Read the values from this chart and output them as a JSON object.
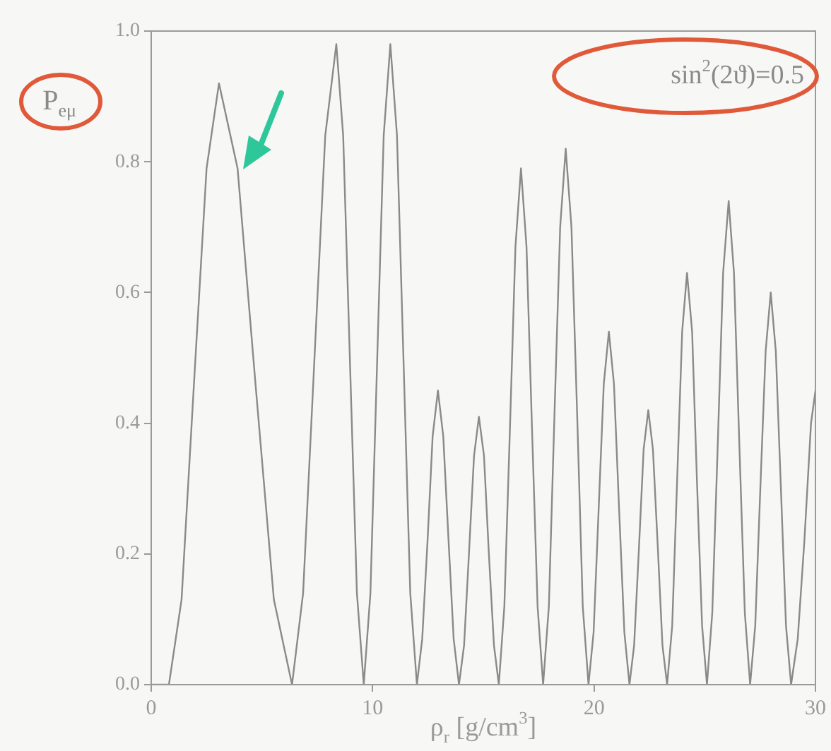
{
  "chart_data": {
    "type": "line",
    "xlabel": "ρ$_{r}$ [g/cm$^{3}$]",
    "ylabel": "P$_{eμ}$",
    "annotations": [
      "sin$^{2}$(2ϑ)=0.5"
    ],
    "x": [
      0,
      0.8,
      1.37,
      1.93,
      2.5,
      3.06,
      3.9,
      4.71,
      5.54,
      6.36,
      6.86,
      7.36,
      7.86,
      8.36,
      8.67,
      8.98,
      9.29,
      9.6,
      9.9,
      10.2,
      10.5,
      10.8,
      11.1,
      11.4,
      11.7,
      12.0,
      12.24,
      12.48,
      12.71,
      12.95,
      13.19,
      13.43,
      13.66,
      13.9,
      14.13,
      14.35,
      14.58,
      14.8,
      15.03,
      15.25,
      15.48,
      15.7,
      15.95,
      16.2,
      16.45,
      16.7,
      16.95,
      17.2,
      17.45,
      17.7,
      17.96,
      18.21,
      18.47,
      18.72,
      18.98,
      19.24,
      19.49,
      19.75,
      19.98,
      20.21,
      20.44,
      20.67,
      20.9,
      21.13,
      21.37,
      21.6,
      21.81,
      22.03,
      22.24,
      22.45,
      22.66,
      22.88,
      23.09,
      23.3,
      23.53,
      23.75,
      23.98,
      24.2,
      24.43,
      24.65,
      24.88,
      25.1,
      25.34,
      25.59,
      25.83,
      26.08,
      26.32,
      26.56,
      26.81,
      27.05,
      27.28,
      27.51,
      27.75,
      27.98,
      28.21,
      28.44,
      28.67,
      28.9,
      29.2,
      29.5,
      29.8,
      30
    ],
    "series": [
      {
        "color": "#8a8a8a",
        "values": [
          0,
          0,
          0.13,
          0.46,
          0.79,
          0.92,
          0.79,
          0.46,
          0.13,
          0,
          0.14,
          0.49,
          0.84,
          0.98,
          0.84,
          0.49,
          0.14,
          0,
          0.14,
          0.49,
          0.84,
          0.98,
          0.84,
          0.49,
          0.14,
          0,
          0.07,
          0.22,
          0.38,
          0.45,
          0.38,
          0.22,
          0.07,
          0,
          0.06,
          0.2,
          0.35,
          0.41,
          0.35,
          0.2,
          0.06,
          0,
          0.12,
          0.39,
          0.67,
          0.79,
          0.67,
          0.39,
          0.12,
          0,
          0.12,
          0.41,
          0.7,
          0.82,
          0.7,
          0.41,
          0.12,
          0,
          0.08,
          0.27,
          0.46,
          0.54,
          0.46,
          0.27,
          0.08,
          0,
          0.06,
          0.21,
          0.36,
          0.42,
          0.36,
          0.21,
          0.06,
          0,
          0.09,
          0.31,
          0.54,
          0.63,
          0.54,
          0.31,
          0.09,
          0,
          0.11,
          0.37,
          0.63,
          0.74,
          0.63,
          0.37,
          0.11,
          0,
          0.09,
          0.3,
          0.51,
          0.6,
          0.51,
          0.3,
          0.09,
          0,
          0.07,
          0.22,
          0.4,
          0.45
        ]
      }
    ],
    "xlim": [
      0,
      30
    ],
    "xticks": [
      0,
      10,
      20,
      30
    ],
    "ylim": [
      0,
      1
    ],
    "yticks": [
      {
        "value": 0,
        "label": "0.0"
      },
      {
        "value": 0.2,
        "label": "0.2"
      },
      {
        "value": 0.4,
        "label": "0.4"
      },
      {
        "value": 0.6,
        "label": "0.6"
      },
      {
        "value": 0.8,
        "label": "0.8"
      },
      {
        "value": 1,
        "label": "1.0"
      }
    ],
    "grid": false,
    "legend": false,
    "marker": "none",
    "line_style": "solid"
  }
}
